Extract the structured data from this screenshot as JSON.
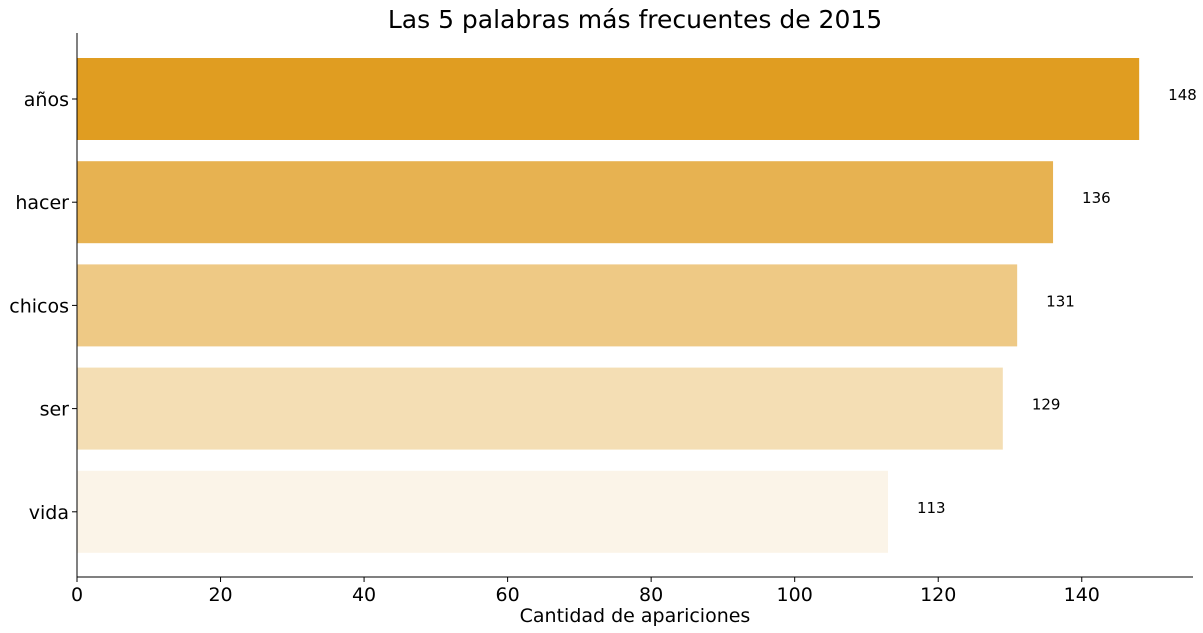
{
  "chart_data": {
    "type": "bar",
    "orientation": "horizontal",
    "title": "Las 5 palabras más frecuentes de 2015",
    "xlabel": "Cantidad de apariciones",
    "ylabel": "",
    "categories": [
      "años",
      "hacer",
      "chicos",
      "ser",
      "vida"
    ],
    "values": [
      148,
      136,
      131,
      129,
      113
    ],
    "value_labels": [
      "148",
      "136",
      "131",
      "129",
      "113"
    ],
    "colors": [
      "#e09d21",
      "#e7b251",
      "#eec985",
      "#f4deb4",
      "#fbf4e8"
    ],
    "xlim": [
      0,
      155.5
    ],
    "xticks": [
      0,
      20,
      40,
      60,
      80,
      100,
      120,
      140
    ],
    "xtick_labels": [
      "0",
      "20",
      "40",
      "60",
      "80",
      "100",
      "120",
      "140"
    ],
    "grid": false
  }
}
